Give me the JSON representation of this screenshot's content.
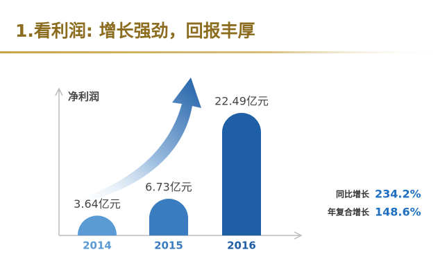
{
  "chart_data": {
    "type": "bar",
    "title": "1.看利润: 增长强劲，回报丰厚",
    "y_label": "净利润",
    "categories": [
      "2014",
      "2015",
      "2016"
    ],
    "values": [
      3.64,
      6.73,
      22.49
    ],
    "value_labels": [
      "3.64亿元",
      "6.73亿元",
      "22.49亿元"
    ],
    "colors": [
      "#5b9bd5",
      "#3a7cc0",
      "#1f5fa6"
    ]
  },
  "stats": [
    {
      "label": "同比增长",
      "value": "234.2%"
    },
    {
      "label": "年复合增长",
      "value": "148.6%"
    }
  ]
}
